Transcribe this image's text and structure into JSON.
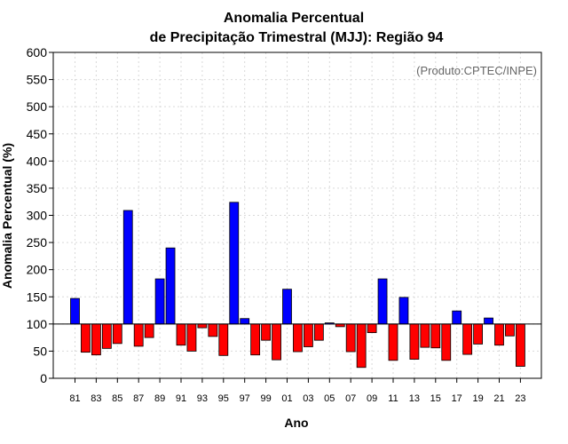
{
  "chart_data": {
    "type": "bar",
    "title": "Anomalia Percentual",
    "subtitle": "de Precipitação Trimestral (MJJ): Região 94",
    "xlabel": "Ano",
    "ylabel": "Anomalia Percentual (%)",
    "annotation": "(Produto:CPTEC/INPE)",
    "ylim": [
      0,
      600
    ],
    "baseline": 100,
    "yticks": [
      "0",
      "50",
      "100",
      "150",
      "200",
      "250",
      "300",
      "350",
      "400",
      "450",
      "500",
      "550",
      "600"
    ],
    "xtick_labels": [
      "81",
      "83",
      "85",
      "87",
      "89",
      "91",
      "93",
      "95",
      "97",
      "99",
      "01",
      "03",
      "05",
      "07",
      "09",
      "11",
      "13",
      "15",
      "17",
      "19",
      "21",
      "23"
    ],
    "categories": [
      "81",
      "82",
      "83",
      "84",
      "85",
      "86",
      "87",
      "88",
      "89",
      "90",
      "91",
      "92",
      "93",
      "94",
      "95",
      "96",
      "97",
      "98",
      "99",
      "00",
      "01",
      "02",
      "03",
      "04",
      "05",
      "06",
      "07",
      "08",
      "09",
      "10",
      "11",
      "12",
      "13",
      "14",
      "15",
      "16",
      "17",
      "18",
      "19",
      "20",
      "21",
      "22",
      "23"
    ],
    "values": [
      147,
      48,
      43,
      55,
      64,
      309,
      59,
      75,
      183,
      240,
      61,
      50,
      93,
      77,
      42,
      324,
      110,
      43,
      70,
      34,
      164,
      49,
      58,
      70,
      102,
      95,
      49,
      20,
      84,
      183,
      33,
      149,
      35,
      57,
      56,
      33,
      124,
      44,
      63,
      111,
      61,
      78,
      22
    ],
    "colors": {
      "above": "#0000ff",
      "below": "#ff0000"
    }
  }
}
